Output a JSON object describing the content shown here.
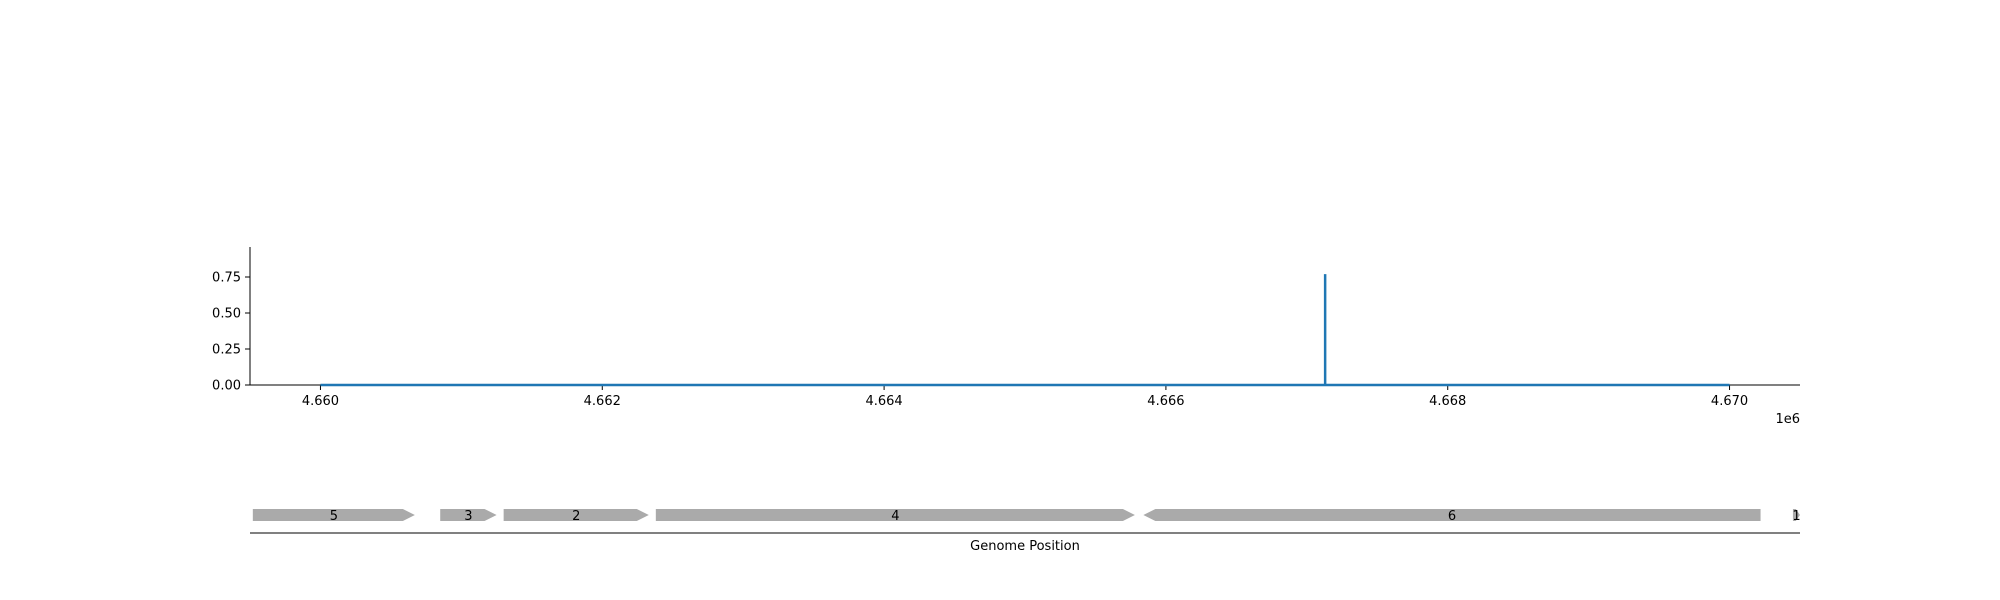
{
  "chart_data": {
    "type": "line",
    "title": "",
    "xlabel": "",
    "ylabel": "",
    "x_offset_label": "1e6",
    "xlim": [
      4.6595,
      4.6705
    ],
    "ylim": [
      0,
      0.85
    ],
    "x_ticks": [
      4.66,
      4.662,
      4.664,
      4.666,
      4.668,
      4.67
    ],
    "x_tick_labels": [
      "4.660",
      "4.662",
      "4.664",
      "4.666",
      "4.668",
      "4.670"
    ],
    "y_ticks": [
      0.0,
      0.25,
      0.5,
      0.75
    ],
    "y_tick_labels": [
      "0.00",
      "0.25",
      "0.50",
      "0.75"
    ],
    "grid": false,
    "color": "#1f77b4",
    "series": [
      {
        "x": [
          4.66,
          4.66713,
          4.66713,
          4.66713,
          4.67
        ],
        "y": [
          0,
          0,
          0.77,
          0,
          0
        ]
      }
    ]
  },
  "gene_track": {
    "xlabel": "Genome Position",
    "xlim": [
      4.6595,
      4.6705
    ],
    "fill": "#aaaaaa",
    "genes": [
      {
        "label": "5",
        "start": 4.65952,
        "end": 4.66067,
        "strand": "+"
      },
      {
        "label": "3",
        "start": 4.66085,
        "end": 4.66125,
        "strand": "+"
      },
      {
        "label": "2",
        "start": 4.6613,
        "end": 4.66233,
        "strand": "+"
      },
      {
        "label": "4",
        "start": 4.66238,
        "end": 4.66578,
        "strand": "+"
      },
      {
        "label": "6",
        "start": 4.66584,
        "end": 4.67022,
        "strand": "-"
      },
      {
        "label": "1",
        "start": 4.67045,
        "end": 4.6705,
        "strand": "+"
      }
    ]
  }
}
